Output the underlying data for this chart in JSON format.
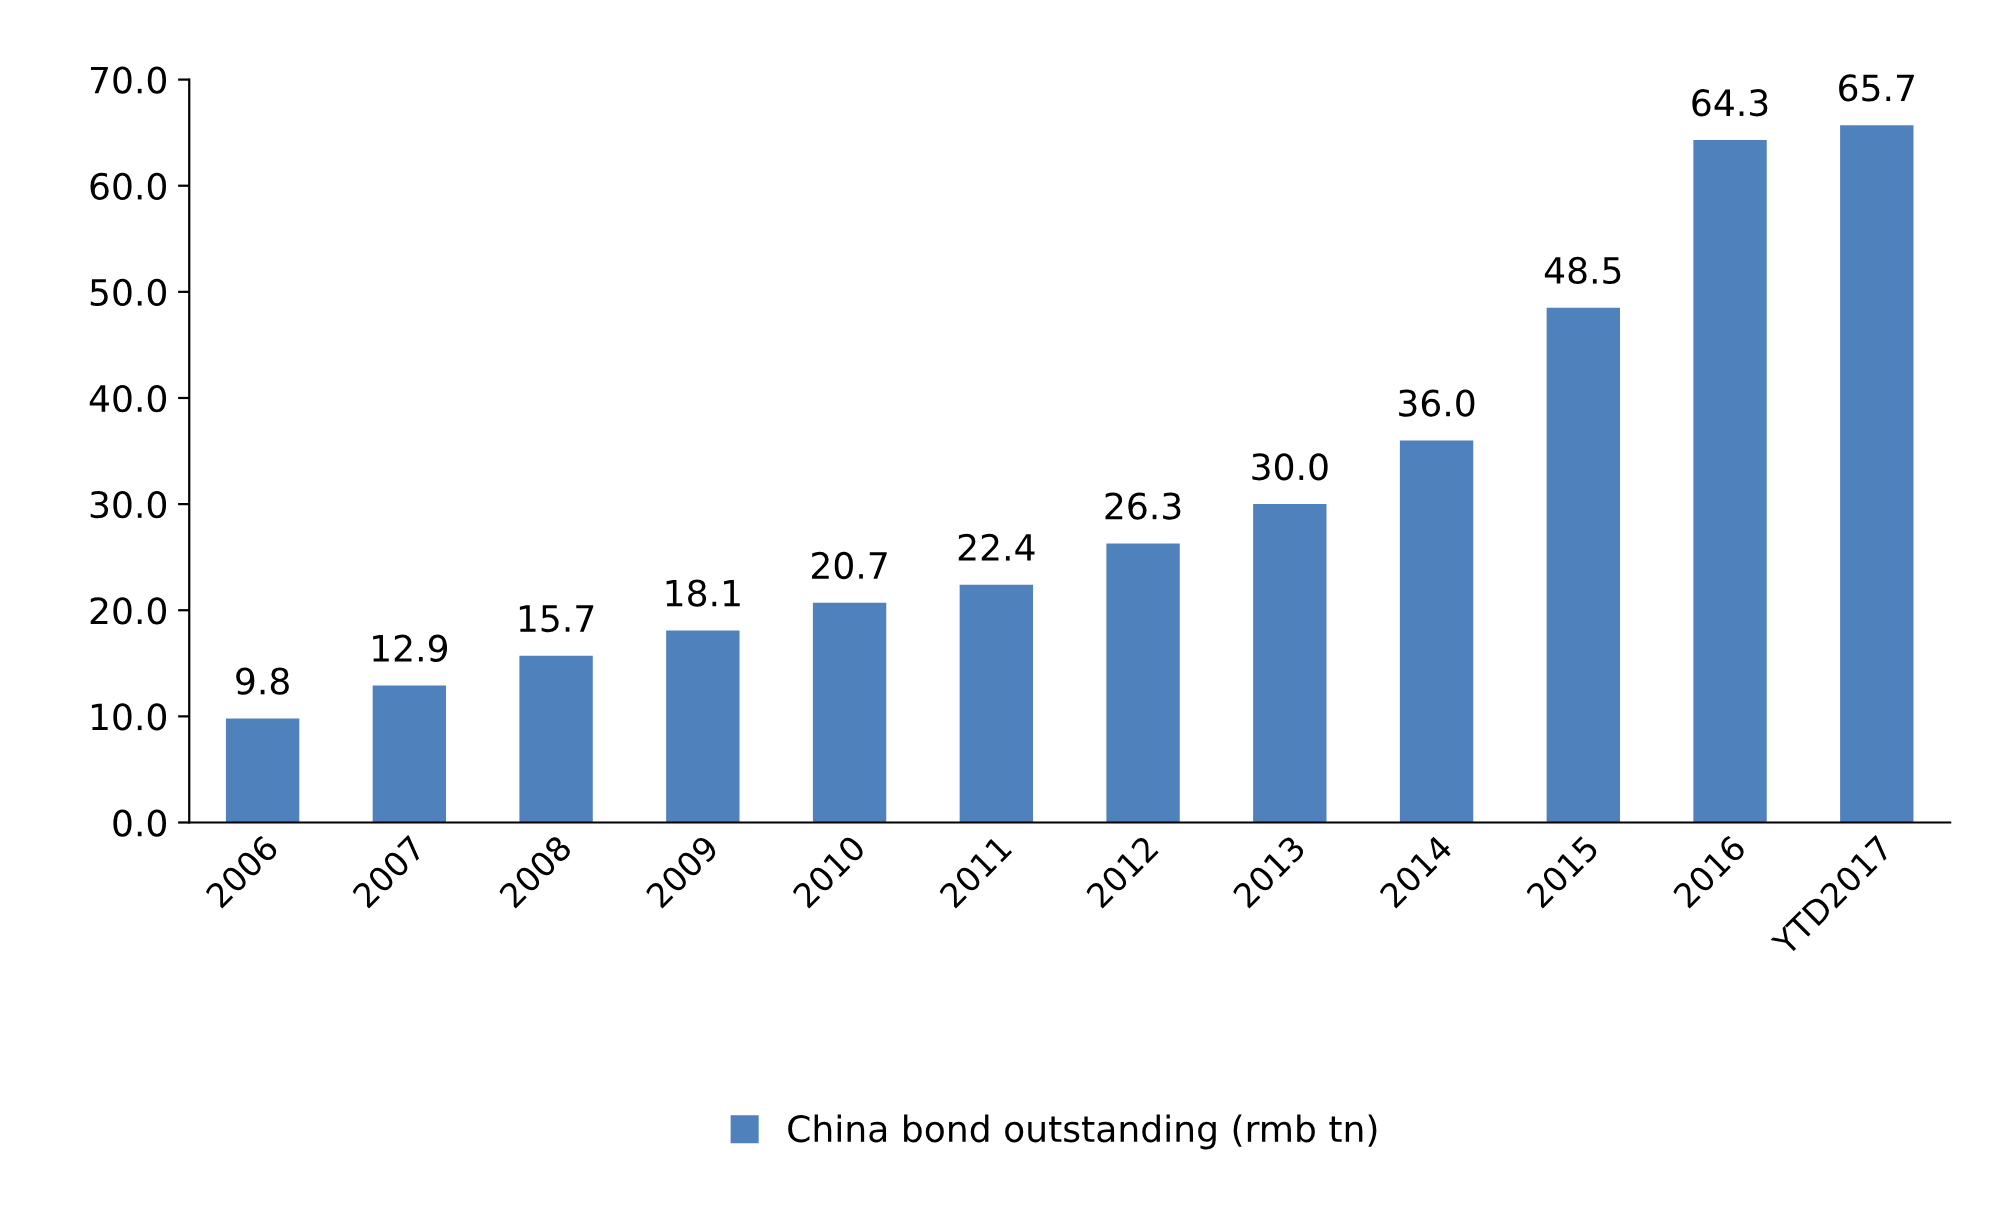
{
  "chart_data": {
    "type": "bar",
    "categories": [
      "2006",
      "2007",
      "2008",
      "2009",
      "2010",
      "2011",
      "2012",
      "2013",
      "2014",
      "2015",
      "2016",
      "YTD2017"
    ],
    "series": [
      {
        "name": "China bond outstanding (rmb tn)",
        "color": "#4f81bd",
        "values": [
          9.8,
          12.9,
          15.7,
          18.1,
          20.7,
          22.4,
          26.3,
          30.0,
          36.0,
          48.5,
          64.3,
          65.7
        ],
        "value_labels": [
          "9.8",
          "12.9",
          "15.7",
          "18.1",
          "20.7",
          "22.4",
          "26.3",
          "30.0",
          "36.0",
          "48.5",
          "64.3",
          "65.7"
        ]
      }
    ],
    "ylim": [
      0,
      70
    ],
    "yticks": [
      {
        "value": 0,
        "label": "0.0"
      },
      {
        "value": 10,
        "label": "10.0"
      },
      {
        "value": 20,
        "label": "20.0"
      },
      {
        "value": 30,
        "label": "30.0"
      },
      {
        "value": 40,
        "label": "40.0"
      },
      {
        "value": 50,
        "label": "50.0"
      },
      {
        "value": 60,
        "label": "60.0"
      },
      {
        "value": 70,
        "label": "70.0"
      }
    ],
    "grid": false,
    "legend": "bottom"
  }
}
